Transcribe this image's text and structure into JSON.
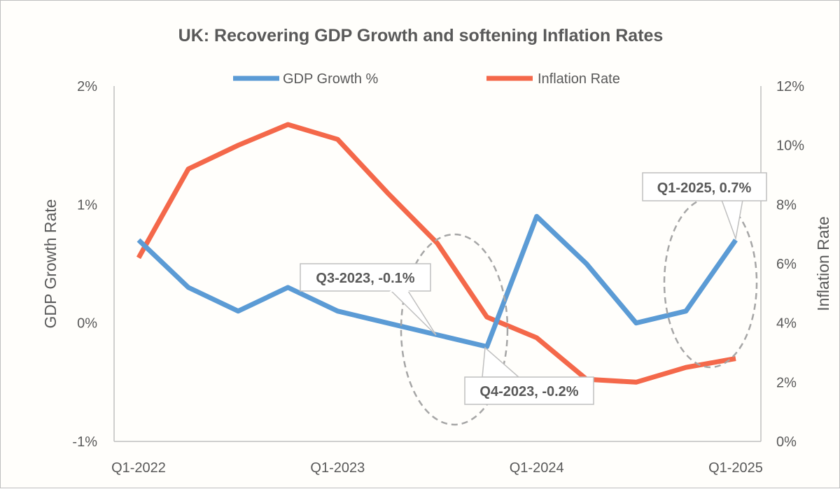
{
  "chart_data": {
    "type": "line",
    "title": "UK: Recovering  GDP Growth and softening Inflation Rates",
    "categories": [
      "Q1-2022",
      "Q2-2022",
      "Q3-2022",
      "Q4-2022",
      "Q1-2023",
      "Q2-2023",
      "Q3-2023",
      "Q4-2023",
      "Q1-2024",
      "Q2-2024",
      "Q3-2024",
      "Q4-2024",
      "Q1-2025"
    ],
    "x_tick_labels": [
      "Q1-2022",
      "Q1-2023",
      "Q1-2024",
      "Q1-2025"
    ],
    "series": [
      {
        "name": "GDP Growth %",
        "axis": "left",
        "color": "#5b9bd5",
        "values": [
          0.7,
          0.3,
          0.1,
          0.3,
          0.1,
          0.0,
          -0.1,
          -0.2,
          0.9,
          0.5,
          0.0,
          0.1,
          0.7
        ]
      },
      {
        "name": "Inflation Rate",
        "axis": "right",
        "color": "#f4684a",
        "values": [
          6.2,
          9.2,
          10.0,
          10.7,
          10.2,
          8.4,
          6.7,
          4.2,
          3.5,
          2.1,
          2.0,
          2.5,
          2.8
        ]
      }
    ],
    "y_left": {
      "label": "GDP Growth Rate",
      "min": -1,
      "max": 2,
      "ticks": [
        "-1%",
        "0%",
        "1%",
        "2%"
      ]
    },
    "y_right": {
      "label": "Inflation Rate",
      "min": 0,
      "max": 12,
      "ticks": [
        "0%",
        "2%",
        "4%",
        "6%",
        "8%",
        "10%",
        "12%"
      ]
    },
    "annotations": [
      {
        "text": "Q3-2023, -0.1%",
        "category": "Q3-2023",
        "value": -0.1
      },
      {
        "text": "Q4-2023, -0.2%",
        "category": "Q4-2023",
        "value": -0.2
      },
      {
        "text": "Q1-2025, 0.7%",
        "category": "Q1-2025",
        "value": 0.7
      }
    ],
    "legend_position": "top",
    "grid": false,
    "colors": {
      "gdp": "#5b9bd5",
      "inflation": "#f4684a",
      "text": "#595959",
      "axis": "#bfbfbf",
      "dashed_ellipse": "#a6a6a6"
    }
  }
}
